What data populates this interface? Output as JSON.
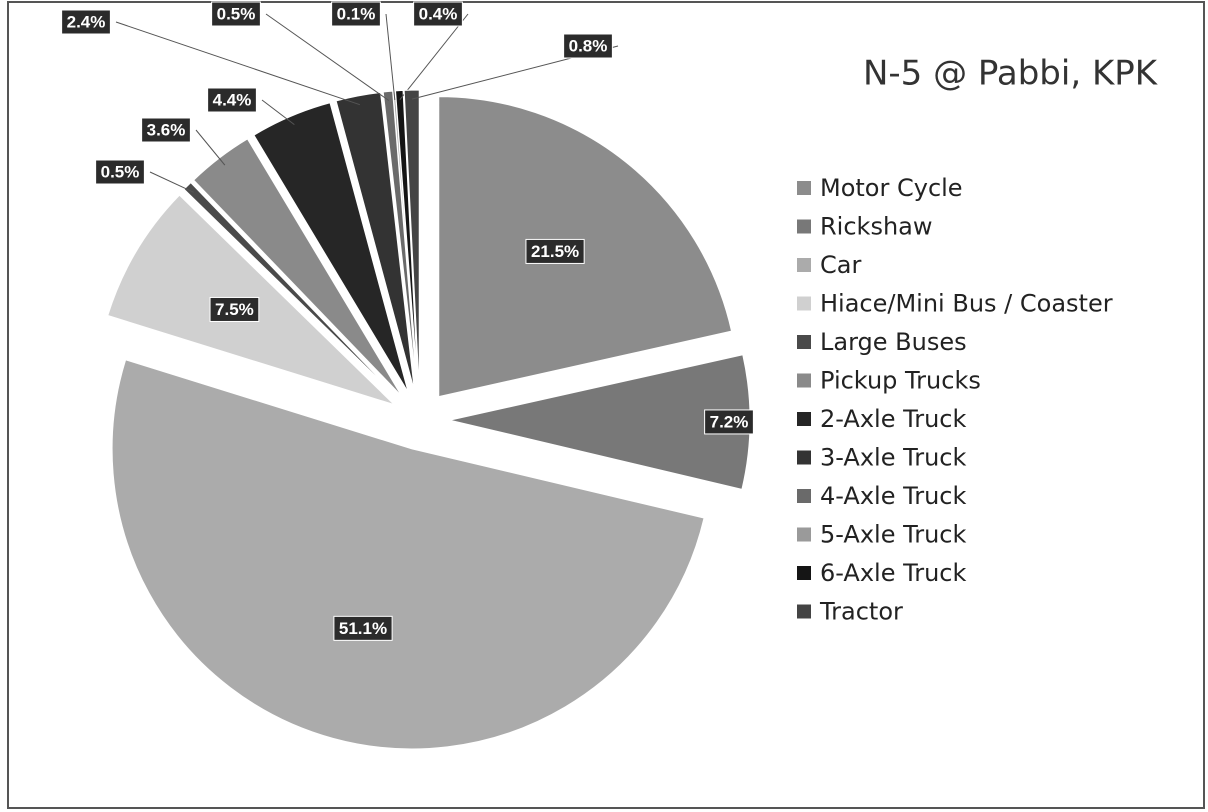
{
  "chart_data": {
    "type": "pie",
    "title": "N-5 @ Pabbi, KPK",
    "categories": [
      "Motor Cycle",
      "Rickshaw",
      "Car",
      "Hiace/Mini Bus / Coaster",
      "Large Buses",
      "Pickup Trucks",
      "2-Axle Truck",
      "3-Axle Truck",
      " 4-Axle Truck",
      "5-Axle Truck",
      "6-Axle Truck",
      "Tractor"
    ],
    "values": [
      21.5,
      7.2,
      51.1,
      7.5,
      0.5,
      3.6,
      4.4,
      2.4,
      0.5,
      0.1,
      0.4,
      0.8
    ],
    "value_labels": [
      "21.5%",
      "7.2%",
      "51.1%",
      "7.5%",
      "0.5%",
      "3.6%",
      "4.4%",
      "2.4%",
      "0.5%",
      "0.1%",
      "0.4%",
      "0.8%"
    ],
    "colors": [
      "#8c8c8c",
      "#787878",
      "#ababab",
      "#d0d0d0",
      "#4a4a4a",
      "#8a8a8a",
      "#262626",
      "#333333",
      "#6a6a6a",
      "#9a9a9a",
      "#151515",
      "#444444"
    ],
    "legend": "right"
  }
}
